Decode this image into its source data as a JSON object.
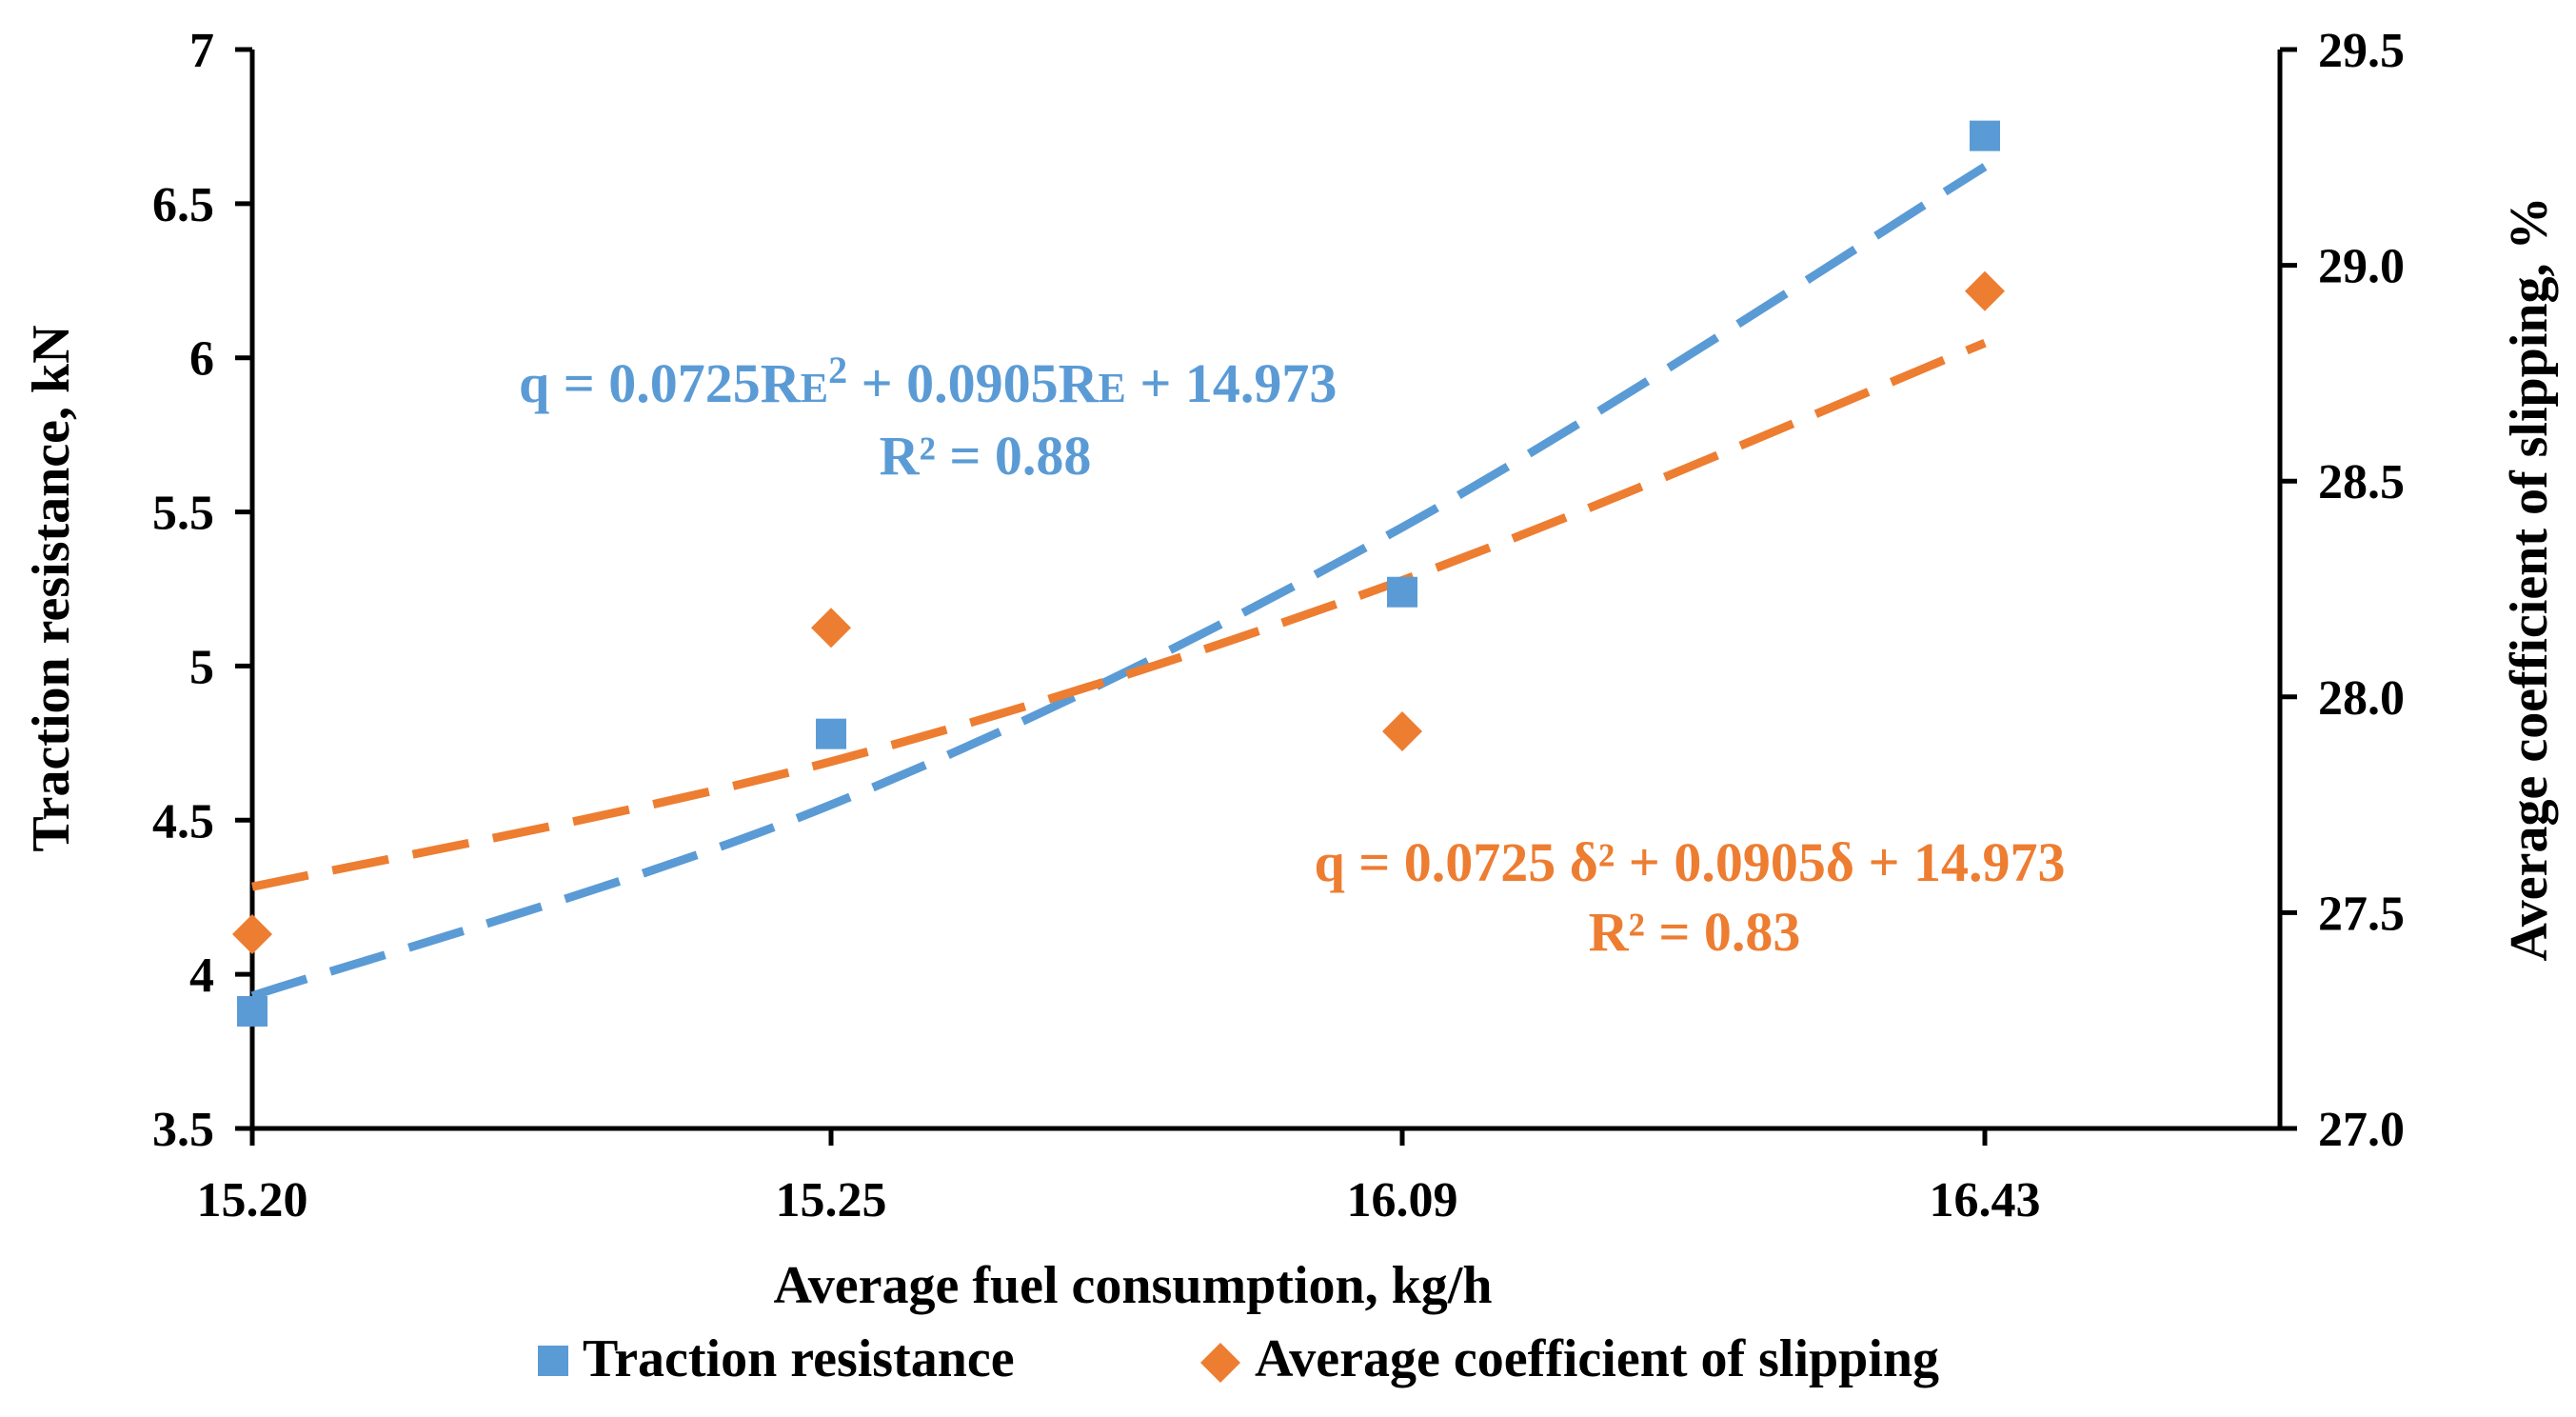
{
  "chart_data": {
    "type": "scatter",
    "categories": [
      "15.20",
      "15.25",
      "16.09",
      "16.43"
    ],
    "xlabel": "Average fuel consumption, kg/h",
    "ylabel_left": "Traction resistance, kN",
    "ylabel_right": "Average coefficient of slipping, %",
    "ylim_left": [
      3.5,
      7
    ],
    "ylim_right": [
      27.0,
      29.5
    ],
    "yticks_left": [
      "3.5",
      "4",
      "4.5",
      "5",
      "5.5",
      "6",
      "6.5",
      "7"
    ],
    "yticks_right": [
      "27.0",
      "27.5",
      "28.0",
      "28.5",
      "29.0",
      "29.5"
    ],
    "grid": false,
    "series": [
      {
        "name": "Traction resistance",
        "axis": "left",
        "marker": "square",
        "color": "#5B9BD5",
        "values": [
          3.88,
          4.78,
          5.24,
          6.72
        ],
        "trend": {
          "type": "polynomial",
          "values": [
            3.93,
            4.55,
            5.45,
            6.62
          ]
        },
        "equation": "q = 0.0725R",
        "equation_sub1": "E",
        "equation_mid": "2",
        "equation_rest": " + 0.0905R",
        "equation_sub2": "E",
        "equation_end": " + 14.973",
        "r2": "R² = 0.88"
      },
      {
        "name": "Average coefficient of slipping",
        "axis": "right",
        "marker": "diamond",
        "color": "#ED7D31",
        "values": [
          27.45,
          28.16,
          27.92,
          28.94
        ],
        "trend": {
          "type": "polynomial",
          "values": [
            27.56,
            27.85,
            28.27,
            28.82
          ]
        },
        "equation": "q = 0.0725 δ² + 0.0905δ + 14.973",
        "r2": "R² = 0.83"
      }
    ]
  }
}
